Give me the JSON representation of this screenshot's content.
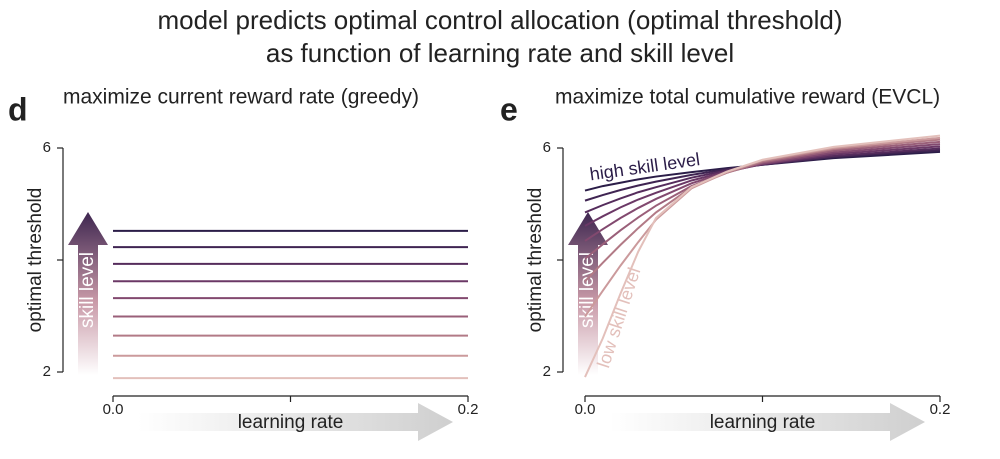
{
  "title": [
    "model predicts optimal control allocation (optimal threshold)",
    "as function of learning rate and skill level"
  ],
  "chart_data": [
    {
      "type": "line",
      "panel": "d",
      "subtitle": "maximize current reward rate (greedy)",
      "xlabel": "learning rate",
      "ylabel": "optimal threshold",
      "xlim": [
        0,
        0.2
      ],
      "ylim": [
        2,
        6
      ],
      "xticks": [
        {
          "value": 0,
          "label": "0.0"
        },
        {
          "value": 0.1,
          "label": null
        },
        {
          "value": 0.2,
          "label": "0.2"
        }
      ],
      "yticks": [
        2,
        {
          "value": 4,
          "label": null
        },
        6
      ],
      "annotations": [
        "skill level"
      ],
      "x": [
        0,
        0.2
      ],
      "series": [
        {
          "color": "#2b1d48",
          "values": [
            4.52,
            4.52
          ]
        },
        {
          "color": "#3f2452",
          "values": [
            4.23,
            4.23
          ]
        },
        {
          "color": "#552c5c",
          "values": [
            3.93,
            3.93
          ]
        },
        {
          "color": "#6b3866",
          "values": [
            3.62,
            3.62
          ]
        },
        {
          "color": "#82496f",
          "values": [
            3.32,
            3.32
          ]
        },
        {
          "color": "#9a5f79",
          "values": [
            2.99,
            2.99
          ]
        },
        {
          "color": "#b27a86",
          "values": [
            2.65,
            2.65
          ]
        },
        {
          "color": "#cb9a9c",
          "values": [
            2.29,
            2.29
          ]
        },
        {
          "color": "#e3c0bb",
          "values": [
            1.89,
            1.89
          ]
        }
      ]
    },
    {
      "type": "line",
      "panel": "e",
      "subtitle": "maximize total cumulative reward (EVCL)",
      "xlabel": "learning rate",
      "ylabel": "optimal threshold",
      "xlim": [
        0,
        0.2
      ],
      "ylim": [
        2,
        6
      ],
      "xticks": [
        {
          "value": 0,
          "label": "0.0"
        },
        {
          "value": 0.1,
          "label": null
        },
        {
          "value": 0.2,
          "label": "0.2"
        }
      ],
      "yticks": [
        2,
        {
          "value": 4,
          "label": null
        },
        6
      ],
      "annotations": [
        "skill level",
        "high skill level",
        "low skill level"
      ],
      "x": [
        0,
        0.01,
        0.02,
        0.03,
        0.04,
        0.06,
        0.08,
        0.1,
        0.14,
        0.2
      ],
      "series": [
        {
          "color": "#2b1d48",
          "values": [
            5.24,
            5.32,
            5.38,
            5.44,
            5.49,
            5.57,
            5.64,
            5.7,
            5.82,
            5.93
          ]
        },
        {
          "color": "#3f2452",
          "values": [
            5.06,
            5.16,
            5.25,
            5.33,
            5.4,
            5.52,
            5.62,
            5.7,
            5.84,
            5.96
          ]
        },
        {
          "color": "#552c5c",
          "values": [
            4.85,
            4.98,
            5.1,
            5.21,
            5.3,
            5.47,
            5.6,
            5.71,
            5.86,
            5.99
          ]
        },
        {
          "color": "#6b3866",
          "values": [
            4.61,
            4.78,
            4.94,
            5.08,
            5.2,
            5.42,
            5.58,
            5.71,
            5.89,
            6.03
          ]
        },
        {
          "color": "#82496f",
          "values": [
            4.34,
            4.55,
            4.75,
            4.93,
            5.09,
            5.37,
            5.57,
            5.72,
            5.92,
            6.07
          ]
        },
        {
          "color": "#9a5f79",
          "values": [
            4.02,
            4.28,
            4.53,
            4.76,
            4.97,
            5.32,
            5.56,
            5.74,
            5.95,
            6.11
          ]
        },
        {
          "color": "#b27a86",
          "values": [
            3.62,
            3.95,
            4.27,
            4.57,
            4.85,
            5.3,
            5.56,
            5.76,
            5.98,
            6.15
          ]
        },
        {
          "color": "#cb9a9c",
          "values": [
            2.99,
            3.45,
            3.9,
            4.32,
            4.72,
            5.28,
            5.57,
            5.78,
            6.0,
            6.18
          ]
        },
        {
          "color": "#e3c0bb",
          "values": [
            1.91,
            2.6,
            3.4,
            4.15,
            4.75,
            5.3,
            5.58,
            5.79,
            6.02,
            6.22
          ]
        }
      ]
    }
  ]
}
